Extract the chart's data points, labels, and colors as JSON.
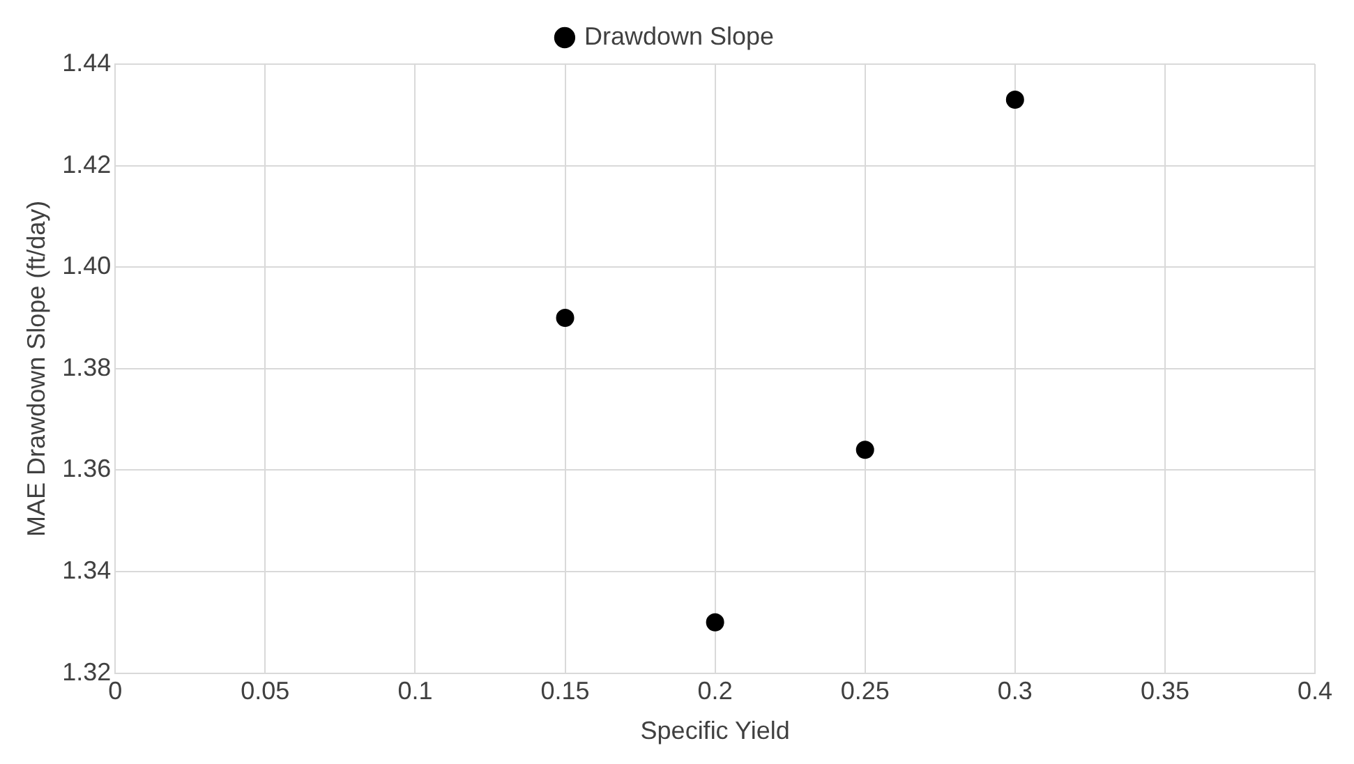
{
  "chart_data": {
    "type": "scatter",
    "xlabel": "Specific Yield",
    "ylabel": "MAE Drawdown Slope (ft/day)",
    "x": [
      0.15,
      0.2,
      0.25,
      0.3
    ],
    "series": [
      {
        "name": "Drawdown Slope",
        "color": "#000000",
        "values": [
          1.39,
          1.33,
          1.364,
          1.433
        ]
      }
    ],
    "xlim": [
      0,
      0.4
    ],
    "xticks": [
      0,
      0.05,
      0.1,
      0.15,
      0.2,
      0.25,
      0.3,
      0.35,
      0.4
    ],
    "ylim": [
      1.32,
      1.44
    ],
    "yticks": [
      {
        "value": 1.32,
        "label": "1.32"
      },
      {
        "value": 1.34,
        "label": "1.34"
      },
      {
        "value": 1.36,
        "label": "1.36"
      },
      {
        "value": 1.38,
        "label": "1.38"
      },
      {
        "value": 1.4,
        "label": "1.40"
      },
      {
        "value": 1.42,
        "label": "1.42"
      },
      {
        "value": 1.44,
        "label": "1.44"
      }
    ],
    "grid": true,
    "legend": "top",
    "marker": "circle"
  }
}
